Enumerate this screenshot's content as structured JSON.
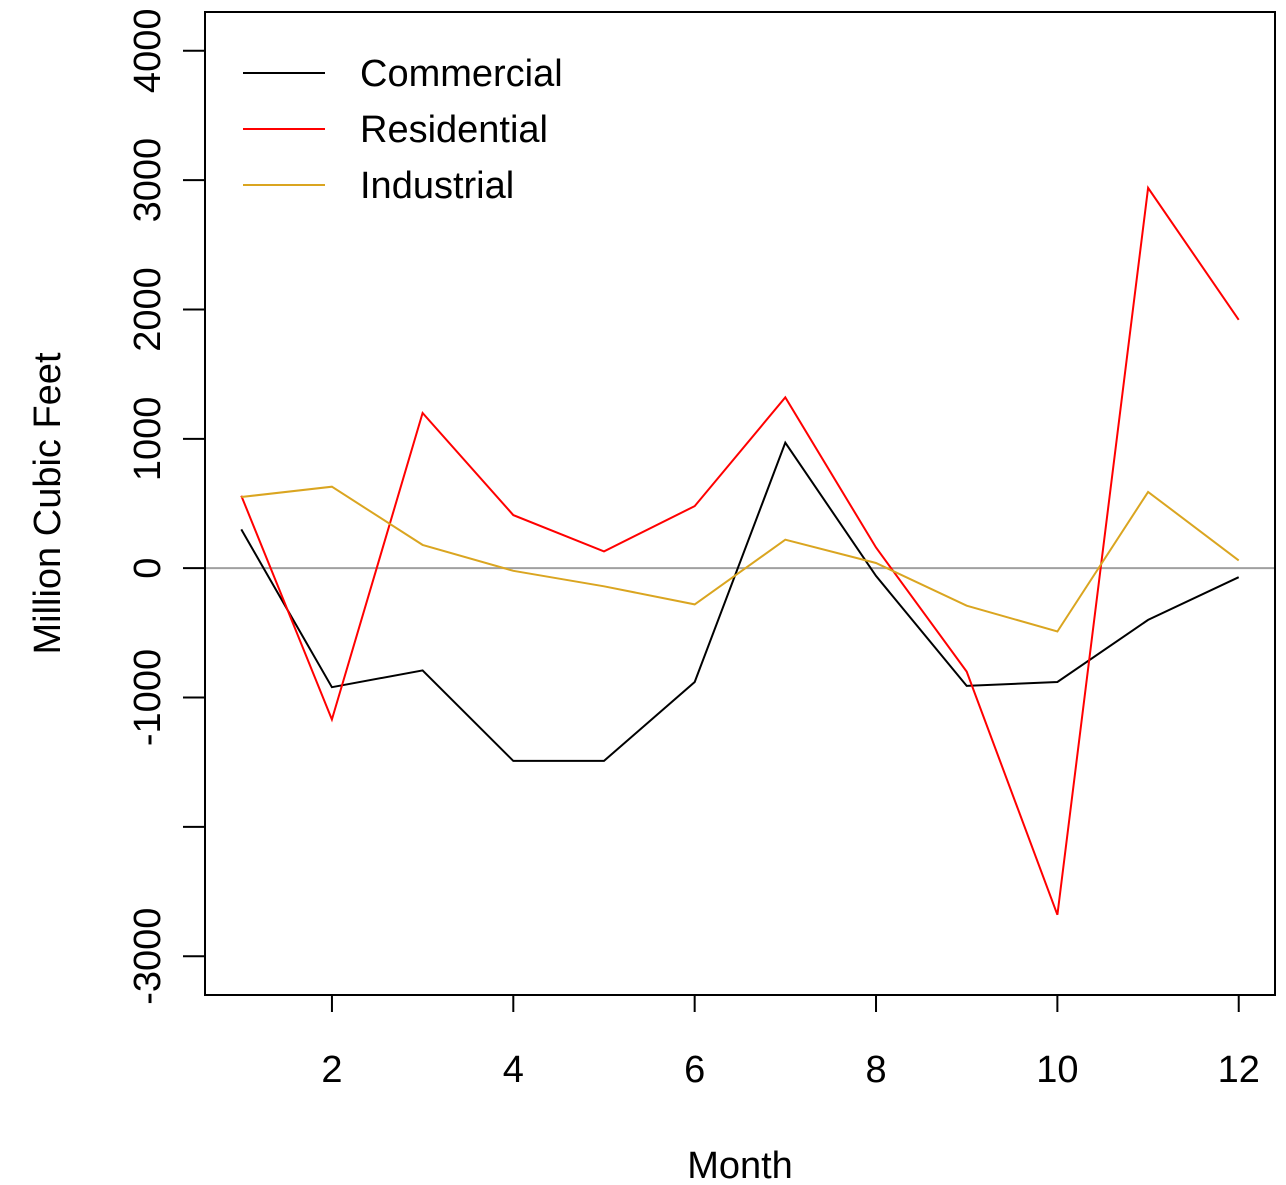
{
  "chart_data": {
    "type": "line",
    "title": "",
    "xlabel": "Month",
    "ylabel": "Million Cubic Feet",
    "xlim": [
      0.6,
      12.4
    ],
    "ylim": [
      -3300,
      4300
    ],
    "x_ticks": [
      2,
      4,
      6,
      8,
      10,
      12
    ],
    "x_tick_labels": [
      "2",
      "4",
      "6",
      "8",
      "10",
      "12"
    ],
    "y_ticks": [
      -3000,
      -2000,
      -1000,
      0,
      1000,
      2000,
      3000,
      4000
    ],
    "y_tick_labels": [
      "-3000",
      "",
      "-1000",
      "0",
      "1000",
      "2000",
      "3000",
      "4000"
    ],
    "reference_line": {
      "y": 0,
      "color": "#a0a0a0"
    },
    "grid": false,
    "legend_position": "top-left",
    "x": [
      1,
      2,
      3,
      4,
      5,
      6,
      7,
      8,
      9,
      10,
      11,
      12
    ],
    "series": [
      {
        "name": "Commercial",
        "color": "#000000",
        "values": [
          300,
          -920,
          -790,
          -1490,
          -1490,
          -880,
          970,
          -60,
          -910,
          -880,
          -400,
          -70
        ]
      },
      {
        "name": "Residential",
        "color": "#ff0000",
        "values": [
          560,
          -1170,
          1200,
          410,
          130,
          480,
          1320,
          160,
          -800,
          -2680,
          2940,
          1920
        ]
      },
      {
        "name": "Industrial",
        "color": "#daa520",
        "values": [
          550,
          630,
          180,
          -20,
          -140,
          -280,
          220,
          40,
          -290,
          -490,
          590,
          60
        ]
      }
    ]
  }
}
